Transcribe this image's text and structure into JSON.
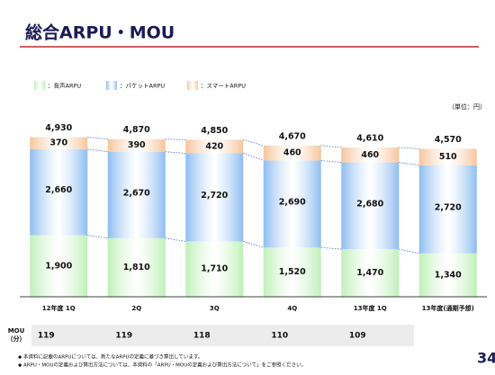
{
  "title": "総合ARPU・MOU",
  "chart_data": {
    "type": "stacked-bar",
    "categories": [
      "12年度 1Q",
      "2Q",
      "3Q",
      "4Q",
      "13年度 1Q",
      "13年度(通期予想)"
    ],
    "series": [
      {
        "name": "：音声ARPU",
        "color": "#bff0b8",
        "values": [
          1900,
          1810,
          1710,
          1520,
          1470,
          1340
        ],
        "value_labels": [
          "1,900",
          "1,810",
          "1,710",
          "1,520",
          "1,470",
          "1,340"
        ]
      },
      {
        "name": "：パケットARPU",
        "color": "#8dbdf0",
        "values": [
          2660,
          2670,
          2720,
          2690,
          2680,
          2720
        ],
        "value_labels": [
          "2,660",
          "2,670",
          "2,720",
          "2,690",
          "2,680",
          "2,720"
        ]
      },
      {
        "name": "：スマートARPU",
        "color": "#f6c59b",
        "values": [
          370,
          390,
          420,
          460,
          460,
          510
        ]
      }
    ],
    "totals": {
      "values": [
        4930,
        4870,
        4850,
        4670,
        4610,
        4570
      ],
      "value_labels": [
        "4,930",
        "4,870",
        "4,850",
        "4,670",
        "4,610",
        "4,570"
      ]
    },
    "ylim": [
      0,
      5000
    ],
    "unit": "（単位：円）"
  },
  "mou": {
    "label": "MOU\n（分）",
    "values": [
      119,
      119,
      118,
      110,
      109,
      null
    ]
  },
  "footnotes": [
    "◆ 本資料に記載のARPUについては、新たなARPUの定義に基づき算出しています。",
    "◆ ARPU・MOUの定義および算出方法については、本資料の「ARPU・MOUの定義および算出方法について」をご参照ください。"
  ],
  "page_number": "34"
}
